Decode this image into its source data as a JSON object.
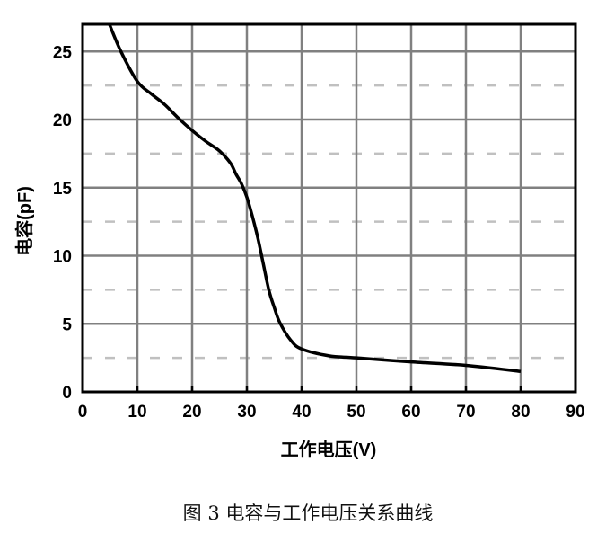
{
  "chart_data": {
    "type": "line",
    "title": "",
    "caption": "图 3 电容与工作电压关系曲线",
    "xlabel": "工作电压(V)",
    "ylabel": "电容(pF)",
    "xlim": [
      0,
      90
    ],
    "ylim": [
      0,
      27
    ],
    "xticks": [
      0,
      10,
      20,
      30,
      40,
      50,
      60,
      70,
      80,
      90
    ],
    "yticks": [
      0,
      5,
      10,
      15,
      20,
      25
    ],
    "y_minor_dashed_grid": [
      2.5,
      7.5,
      12.5,
      17.5,
      22.5
    ],
    "grid": true,
    "colors": {
      "line": "#000000",
      "grid": "#808080",
      "minor_grid": "#c0c0c0"
    },
    "series": [
      {
        "x": [
          4.9,
          7,
          10,
          12.5,
          15,
          17.5,
          20,
          22.5,
          25,
          27,
          28,
          29,
          30,
          31,
          32,
          33,
          34,
          35,
          36,
          38,
          40,
          45,
          50,
          60,
          70,
          80
        ],
        "y": [
          27,
          25,
          22.8,
          21.9,
          21.1,
          20.1,
          19.2,
          18.4,
          17.7,
          16.8,
          16.0,
          15.3,
          14.3,
          12.9,
          11.3,
          9.4,
          7.5,
          6.2,
          5.1,
          3.8,
          3.15,
          2.65,
          2.5,
          2.2,
          1.95,
          1.5
        ]
      }
    ]
  }
}
